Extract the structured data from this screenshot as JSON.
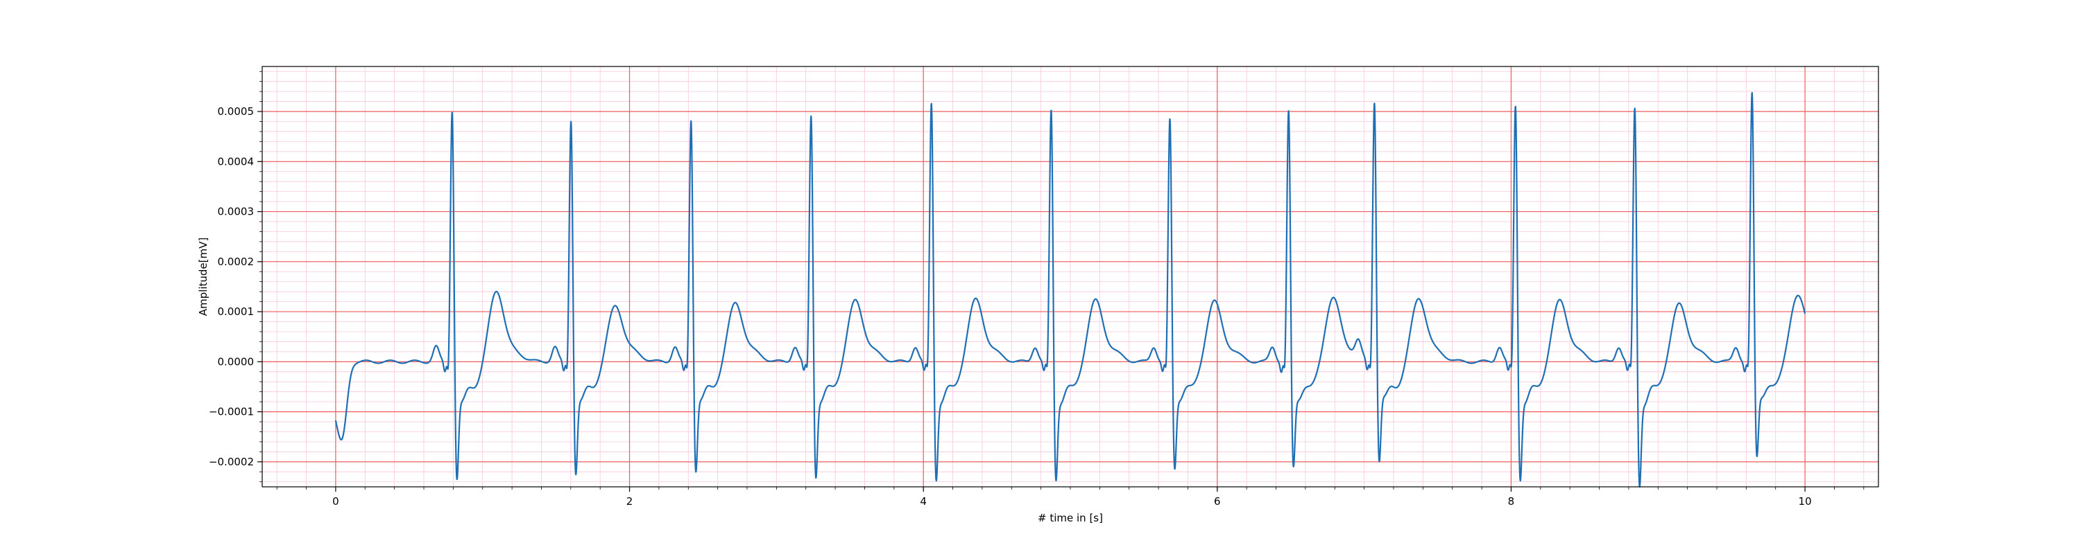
{
  "chart_data": {
    "type": "line",
    "title": "",
    "xlabel": "# time in [s]",
    "ylabel": "Amplitude[mV]",
    "xlim": [
      -0.5,
      10.5
    ],
    "ylim": [
      -0.00025,
      0.00059
    ],
    "x_ticks": [
      0,
      2,
      4,
      6,
      8,
      10
    ],
    "x_tick_labels": [
      "0",
      "2",
      "4",
      "6",
      "8",
      "10"
    ],
    "y_ticks": [
      -0.0002,
      -0.0001,
      0.0,
      0.0001,
      0.0002,
      0.0003,
      0.0004,
      0.0005
    ],
    "y_tick_labels": [
      "−0.0002",
      "−0.0001",
      "0.0000",
      "0.0001",
      "0.0002",
      "0.0003",
      "0.0004",
      "0.0005"
    ],
    "grid": {
      "major": true,
      "minor": true,
      "major_x_step": 2,
      "major_y_step": 0.0001,
      "minor_x_step": 0.2,
      "minor_y_step": 2e-05
    },
    "colors": {
      "line": "#1f6fb4",
      "major_grid": "#ef5b5b",
      "minor_grid": "#f6c6dc",
      "axis": "#000000"
    },
    "legend": "none",
    "series": [
      {
        "beats": [
          {
            "r": 0.793,
            "peak": 0.00053,
            "s": -0.0002,
            "t": 0.0001
          },
          {
            "r": 1.602,
            "peak": 0.00051,
            "s": -0.00019,
            "t": 7e-05
          },
          {
            "r": 2.419,
            "peak": 0.00051,
            "s": -0.000185,
            "t": 7.5e-05
          },
          {
            "r": 3.236,
            "peak": 0.00052,
            "s": -0.000195,
            "t": 8e-05
          },
          {
            "r": 4.055,
            "peak": 0.000545,
            "s": -0.0002,
            "t": 8.2e-05
          },
          {
            "r": 4.87,
            "peak": 0.00053,
            "s": -0.0002,
            "t": 8e-05
          },
          {
            "r": 5.678,
            "peak": 0.00051,
            "s": -0.000182,
            "t": 7.8e-05
          },
          {
            "r": 6.486,
            "peak": 0.000525,
            "s": -0.00018,
            "t": 8.5e-05
          },
          {
            "r": 7.07,
            "peak": 0.000545,
            "s": -0.00017,
            "t": 8.5e-05
          },
          {
            "r": 8.03,
            "peak": 0.00054,
            "s": -0.0002,
            "t": 8e-05
          },
          {
            "r": 8.842,
            "peak": 0.000535,
            "s": -0.00021,
            "t": 7.2e-05
          },
          {
            "r": 9.64,
            "peak": 0.00056,
            "s": -0.000162,
            "t": 7e-05
          }
        ],
        "start": {
          "x": 0.0,
          "y": -7e-05
        },
        "end": {
          "x": 10.0,
          "y": 3e-05
        }
      }
    ]
  }
}
